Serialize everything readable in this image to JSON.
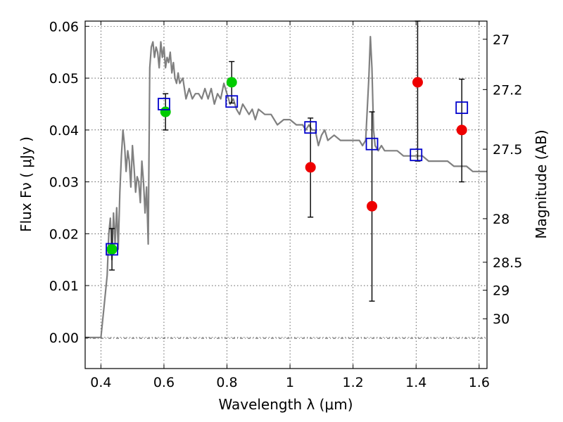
{
  "chart_data": {
    "type": "scatter",
    "xlabel": "Wavelength  λ (μm)",
    "ylabel": "Flux  Fν  ( μJy )",
    "y2label": "Magnitude (AB)",
    "xlim": [
      0.35,
      1.625
    ],
    "ylim": [
      -0.006,
      0.061
    ],
    "x_ticks": [
      0.4,
      0.6,
      0.8,
      1.0,
      1.2,
      1.4,
      1.6
    ],
    "x_tick_labels": [
      "0.4",
      "0.6",
      "0.8",
      "1",
      "1.2",
      "1.4",
      "1.6"
    ],
    "y_ticks": [
      0.0,
      0.01,
      0.02,
      0.03,
      0.04,
      0.05,
      0.06
    ],
    "y_tick_labels": [
      "0.00",
      "0.01",
      "0.02",
      "0.03",
      "0.04",
      "0.05",
      "0.06"
    ],
    "y2_ticks": [
      {
        "label": "27",
        "flux": 0.0575
      },
      {
        "label": "27.2",
        "flux": 0.0478
      },
      {
        "label": "27.5",
        "flux": 0.0363
      },
      {
        "label": "28",
        "flux": 0.0229
      },
      {
        "label": "28.5",
        "flux": 0.0145
      },
      {
        "label": "29",
        "flux": 0.0091
      },
      {
        "label": "30",
        "flux": 0.0036
      }
    ],
    "grid": true,
    "colors": {
      "model": "#808080",
      "model_fit": "#0000cc",
      "green": "#00cc00",
      "red": "#ee0000",
      "errorbar": "#000000"
    },
    "series": [
      {
        "name": "model_sed",
        "kind": "line",
        "x": [
          0.35,
          0.4,
          0.41,
          0.42,
          0.425,
          0.43,
          0.435,
          0.44,
          0.445,
          0.45,
          0.455,
          0.46,
          0.465,
          0.47,
          0.475,
          0.48,
          0.485,
          0.49,
          0.495,
          0.5,
          0.505,
          0.51,
          0.515,
          0.52,
          0.525,
          0.53,
          0.535,
          0.54,
          0.545,
          0.55,
          0.555,
          0.56,
          0.565,
          0.57,
          0.575,
          0.58,
          0.585,
          0.59,
          0.595,
          0.6,
          0.605,
          0.61,
          0.615,
          0.62,
          0.625,
          0.63,
          0.635,
          0.64,
          0.645,
          0.65,
          0.66,
          0.67,
          0.68,
          0.69,
          0.7,
          0.71,
          0.72,
          0.73,
          0.74,
          0.75,
          0.76,
          0.77,
          0.78,
          0.79,
          0.8,
          0.81,
          0.82,
          0.83,
          0.84,
          0.85,
          0.86,
          0.87,
          0.88,
          0.89,
          0.9,
          0.92,
          0.94,
          0.96,
          0.98,
          1.0,
          1.02,
          1.04,
          1.05,
          1.06,
          1.07,
          1.08,
          1.09,
          1.1,
          1.11,
          1.12,
          1.14,
          1.16,
          1.18,
          1.2,
          1.22,
          1.23,
          1.24,
          1.25,
          1.255,
          1.26,
          1.265,
          1.27,
          1.28,
          1.29,
          1.3,
          1.32,
          1.34,
          1.36,
          1.38,
          1.4,
          1.42,
          1.44,
          1.46,
          1.48,
          1.5,
          1.52,
          1.54,
          1.56,
          1.58,
          1.6,
          1.625
        ],
        "y": [
          0.0,
          0.0,
          0.006,
          0.012,
          0.02,
          0.023,
          0.015,
          0.024,
          0.018,
          0.025,
          0.017,
          0.028,
          0.035,
          0.04,
          0.037,
          0.032,
          0.036,
          0.034,
          0.029,
          0.037,
          0.033,
          0.028,
          0.031,
          0.03,
          0.026,
          0.034,
          0.03,
          0.024,
          0.029,
          0.018,
          0.052,
          0.056,
          0.057,
          0.054,
          0.056,
          0.055,
          0.052,
          0.057,
          0.054,
          0.056,
          0.052,
          0.054,
          0.053,
          0.055,
          0.051,
          0.053,
          0.05,
          0.049,
          0.051,
          0.049,
          0.05,
          0.046,
          0.048,
          0.046,
          0.047,
          0.047,
          0.046,
          0.048,
          0.046,
          0.048,
          0.045,
          0.047,
          0.046,
          0.049,
          0.047,
          0.045,
          0.046,
          0.044,
          0.043,
          0.045,
          0.044,
          0.043,
          0.044,
          0.042,
          0.044,
          0.043,
          0.043,
          0.041,
          0.042,
          0.042,
          0.041,
          0.041,
          0.04,
          0.041,
          0.04,
          0.04,
          0.037,
          0.039,
          0.04,
          0.038,
          0.039,
          0.038,
          0.038,
          0.038,
          0.038,
          0.037,
          0.038,
          0.05,
          0.058,
          0.052,
          0.04,
          0.037,
          0.036,
          0.037,
          0.036,
          0.036,
          0.036,
          0.035,
          0.035,
          0.035,
          0.035,
          0.034,
          0.034,
          0.034,
          0.034,
          0.033,
          0.033,
          0.033,
          0.032,
          0.032,
          0.032
        ]
      },
      {
        "name": "model_photometry",
        "kind": "open_square",
        "x": [
          0.435,
          0.6,
          0.815,
          1.065,
          1.26,
          1.4,
          1.545
        ],
        "y": [
          0.017,
          0.045,
          0.0455,
          0.0405,
          0.0373,
          0.0352,
          0.0443
        ]
      },
      {
        "name": "green_detections",
        "kind": "filled_circle",
        "x": [
          0.435,
          0.605,
          0.815
        ],
        "y": [
          0.017,
          0.0435,
          0.0492
        ]
      },
      {
        "name": "red_detections",
        "kind": "filled_circle",
        "x": [
          1.065,
          1.26,
          1.405,
          1.545
        ],
        "y": [
          0.0328,
          0.0253,
          0.0492,
          0.04
        ]
      },
      {
        "name": "errorbars",
        "kind": "errorbar",
        "x": [
          0.435,
          0.605,
          0.815,
          1.065,
          1.26,
          1.405,
          1.545
        ],
        "low": [
          0.013,
          0.04,
          0.0452,
          0.0232,
          0.007,
          0.034,
          0.03
        ],
        "high": [
          0.021,
          0.047,
          0.0532,
          0.0423,
          0.0435,
          0.061,
          0.0498
        ]
      }
    ]
  }
}
